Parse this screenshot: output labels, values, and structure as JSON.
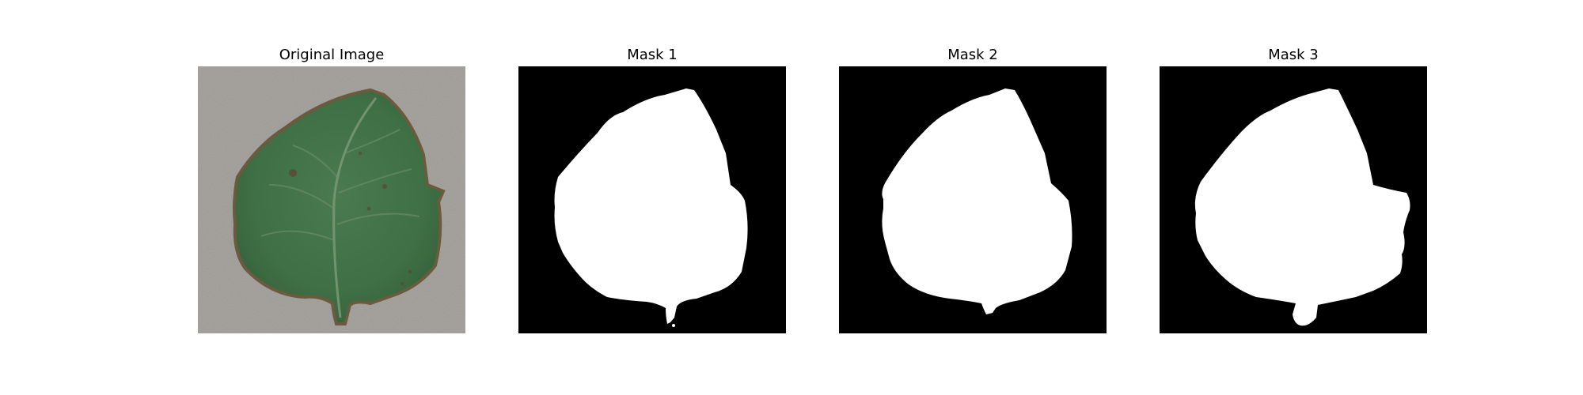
{
  "figure": {
    "panels": [
      {
        "title": "Original Image",
        "kind": "photo",
        "subject": "leaf"
      },
      {
        "title": "Mask 1",
        "kind": "mask"
      },
      {
        "title": "Mask 2",
        "kind": "mask"
      },
      {
        "title": "Mask 3",
        "kind": "mask"
      }
    ]
  },
  "colors": {
    "background": "#a9a6a2",
    "leaf_fill": "#3f6f44",
    "leaf_edge": "#6a5a3e",
    "mask_background": "#000000",
    "mask_foreground": "#ffffff"
  }
}
